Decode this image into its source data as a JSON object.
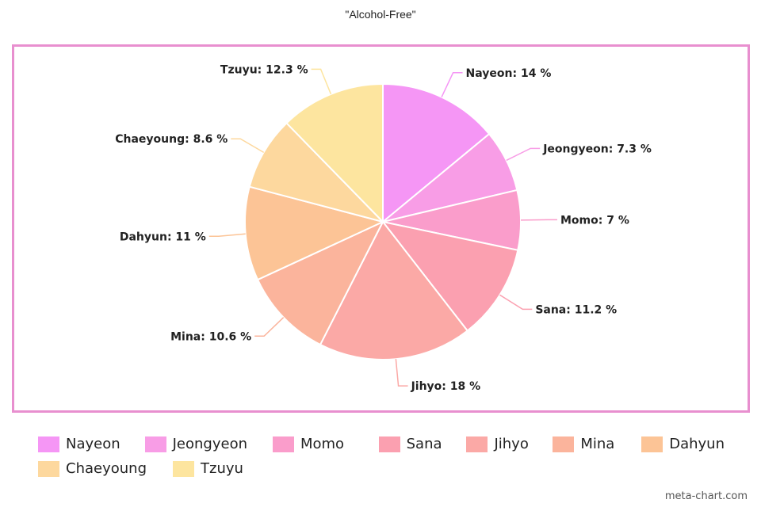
{
  "chart_data": {
    "type": "pie",
    "title": "\"Alcohol-Free\"",
    "categories": [
      "Nayeon",
      "Jeongyeon",
      "Momo",
      "Sana",
      "Jihyo",
      "Mina",
      "Dahyun",
      "Chaeyoung",
      "Tzuyu"
    ],
    "values": [
      14,
      7.3,
      7,
      11.2,
      18,
      10.6,
      11,
      8.6,
      12.3
    ],
    "data_labels": [
      "Nayeon: 14 %",
      "Jeongyeon: 7.3 %",
      "Momo: 7 %",
      "Sana: 11.2 %",
      "Jihyo: 18 %",
      "Mina: 10.6 %",
      "Dahyun: 11 %",
      "Chaeyoung: 8.6 %",
      "Tzuyu: 12.3 %"
    ],
    "colors": [
      "#f596f5",
      "#f89de6",
      "#fa9dcb",
      "#fba0b0",
      "#fba9a6",
      "#fbb49c",
      "#fcc496",
      "#fdd89e",
      "#fde59f"
    ],
    "frame_color": "#e88fcf",
    "legend_position": "bottom-left"
  },
  "watermark": "meta-chart.com"
}
